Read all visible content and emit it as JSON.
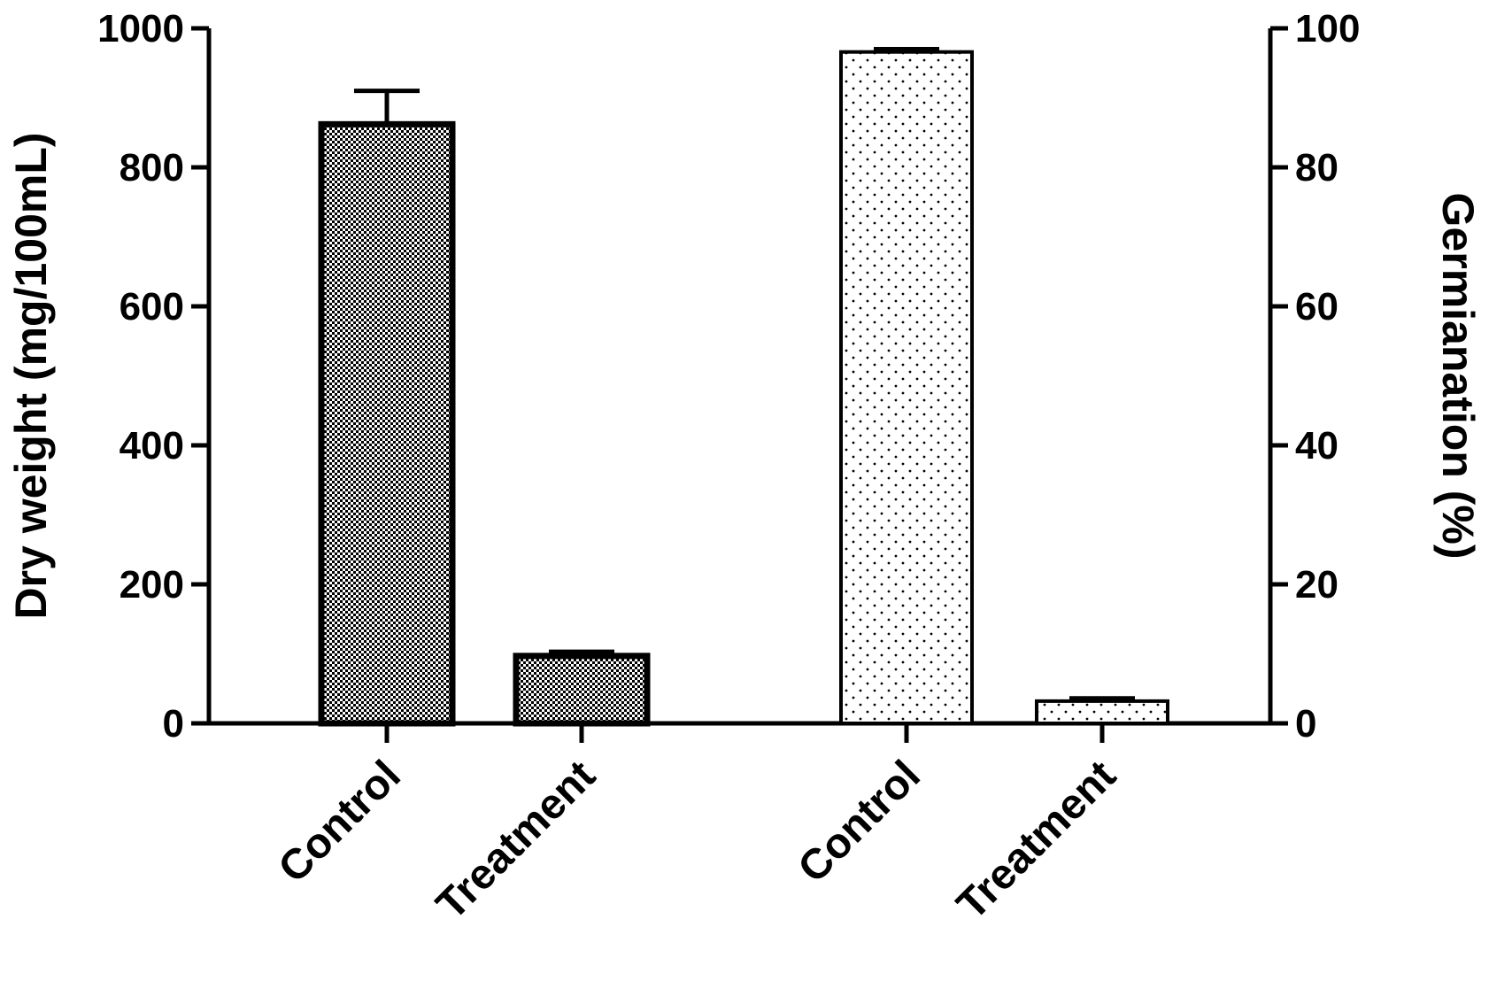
{
  "chart_data": {
    "type": "bar",
    "title": "",
    "groups": [
      {
        "axis": "left",
        "ylabel": "Dry weight (mg/100mL)",
        "ylim": [
          0,
          1000
        ],
        "ticks": [
          "0",
          "200",
          "400",
          "600",
          "800",
          "1000"
        ],
        "categories": [
          "Control",
          "Treatment"
        ],
        "values": [
          862,
          97
        ],
        "errors": [
          48,
          6
        ],
        "pattern": "dense-checker"
      },
      {
        "axis": "right",
        "ylabel": "Germianation (%)",
        "ylim": [
          0,
          100
        ],
        "ticks": [
          "0",
          "20",
          "40",
          "60",
          "80",
          "100"
        ],
        "categories": [
          "Control",
          "Treatment"
        ],
        "values": [
          96.6,
          3.2
        ],
        "errors": [
          0.4,
          0.4
        ],
        "pattern": "sparse-dots"
      }
    ],
    "grid": false,
    "legend": "none"
  },
  "colors": {
    "ink": "#000000",
    "dense_fill": "#9a9a9a",
    "sparse_fill": "#ffffff"
  }
}
